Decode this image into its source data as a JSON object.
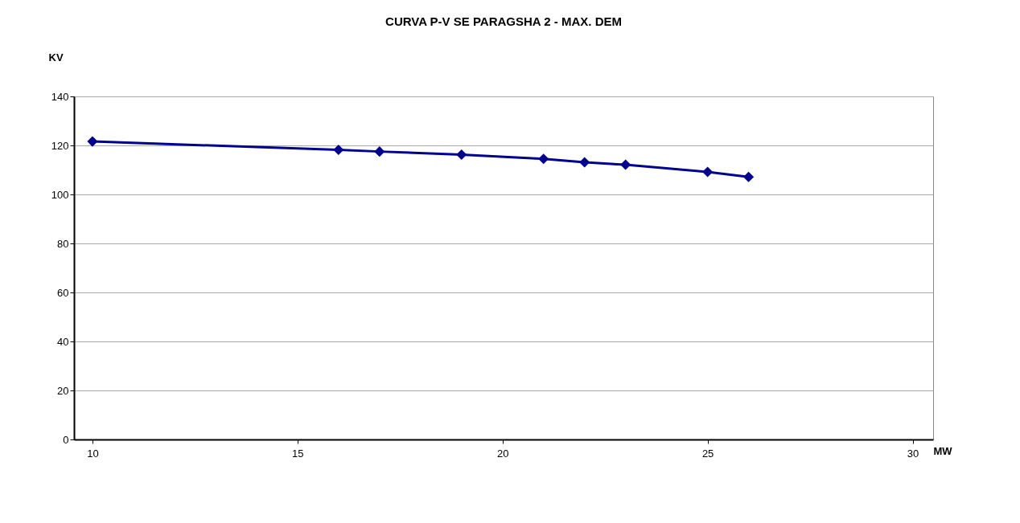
{
  "chart_data": {
    "type": "line",
    "title": "CURVA P-V  SE PARAGSHA 2 - MAX. DEM",
    "xlabel": "MW",
    "ylabel": "KV",
    "x": [
      10,
      16,
      17,
      19,
      21,
      22,
      23,
      25,
      26
    ],
    "series": [
      {
        "color": "#000090",
        "values": [
          121.6,
          118.2,
          117.5,
          116.2,
          114.5,
          113.1,
          112.1,
          109.2,
          107.1
        ]
      }
    ],
    "xlim": [
      9.55,
      30.5
    ],
    "xticks": [
      10,
      15,
      20,
      25,
      30
    ],
    "ylim": [
      0,
      140
    ],
    "yticks": [
      0,
      20,
      40,
      60,
      80,
      100,
      120,
      140
    ],
    "grid": "y",
    "marker": "diamond",
    "line_style": "solid"
  }
}
